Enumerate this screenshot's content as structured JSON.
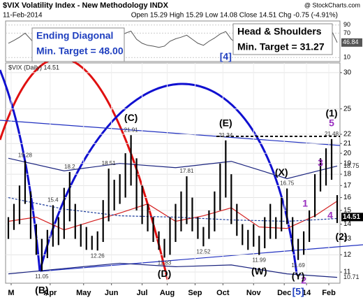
{
  "chart_data": {
    "type": "hl",
    "title": "$VIX Volatility Index - New Methodology INDX",
    "source": "@ StockCharts.com",
    "date": "11-Feb-2014",
    "quote": "Open 15.29 High 15.29 Low 14.08 Close 14.51 Chg -0.75 (-4.91%)",
    "log_scale": true,
    "grid": true,
    "xlim": [
      0,
      60
    ],
    "xticks": [
      {
        "value": 1,
        "label": "M"
      },
      {
        "value": 8,
        "label": "Apr"
      },
      {
        "value": 14,
        "label": "May"
      },
      {
        "value": 19,
        "label": "Jun"
      },
      {
        "value": 24.5,
        "label": "Jul"
      },
      {
        "value": 29,
        "label": "Aug"
      },
      {
        "value": 34,
        "label": "Sep"
      },
      {
        "value": 39,
        "label": "Oct"
      },
      {
        "value": 44.5,
        "label": "Nov"
      },
      {
        "value": 50,
        "label": "Dec"
      },
      {
        "value": 54,
        "label": "14"
      },
      {
        "value": 58,
        "label": "Feb"
      }
    ],
    "ylim": [
      10.4,
      31.5
    ],
    "yticks": [
      11,
      12,
      13,
      14,
      15,
      16,
      17,
      18,
      19,
      20,
      21,
      22,
      25,
      30
    ],
    "series": [
      {
        "name": "$VIX (Daily) 14.51",
        "color": "#000000",
        "highs": [
          14.5,
          15.5,
          17.0,
          19.28,
          16.5,
          14.0,
          13.0,
          13.6,
          15.4,
          14.5,
          16.8,
          18.2,
          15.5,
          14.0,
          13.8,
          13.2,
          13.5,
          15.8,
          18.51,
          17.5,
          18.0,
          20.0,
          21.91,
          19.5,
          17.0,
          15.5,
          14.5,
          13.5,
          13.0,
          14.5,
          15.5,
          16.5,
          17.81,
          16.0,
          14.5,
          13.8,
          15.0,
          16.5,
          19.0,
          21.34,
          18.0,
          15.5,
          14.0,
          13.6,
          14.0,
          13.2,
          14.5,
          15.5,
          14.5,
          16.0,
          16.75,
          14.5,
          13.0,
          13.5,
          15.0,
          18.0,
          19.5,
          20.5,
          21.48,
          16.2
        ],
        "lows": [
          13.0,
          13.6,
          14.0,
          15.5,
          13.0,
          12.0,
          11.05,
          11.8,
          12.5,
          12.6,
          13.0,
          14.2,
          13.0,
          12.5,
          12.3,
          12.3,
          12.26,
          12.8,
          14.2,
          15.0,
          15.5,
          16.0,
          17.0,
          15.0,
          14.0,
          13.5,
          12.8,
          12.3,
          11.83,
          12.0,
          12.8,
          13.5,
          14.0,
          13.5,
          13.0,
          12.52,
          13.0,
          13.5,
          15.0,
          16.0,
          14.0,
          13.2,
          12.6,
          12.3,
          12.5,
          11.99,
          12.4,
          13.0,
          13.0,
          13.5,
          14.0,
          12.2,
          11.69,
          12.0,
          12.8,
          14.5,
          16.5,
          17.0,
          17.5,
          14.08
        ],
        "labeled_highs": [
          3,
          8,
          11,
          18,
          22,
          32,
          39,
          50,
          58
        ],
        "labeled_lows": [
          6,
          16,
          28,
          35,
          45,
          52
        ],
        "last_close": 14.51
      }
    ],
    "overlays": [
      {
        "color": "#d42020",
        "x": [
          0,
          5,
          10,
          15,
          20,
          25,
          30,
          35,
          40,
          45,
          50,
          55,
          59
        ],
        "values": [
          14.2,
          14.5,
          13.6,
          14.2,
          14.8,
          15.5,
          14.2,
          14.6,
          15.2,
          13.8,
          13.7,
          14.6,
          15.72
        ],
        "dashed": false,
        "last_label": false
      },
      {
        "color": "#1a3a9a",
        "x": [
          0,
          10,
          20,
          30,
          40,
          50,
          59
        ],
        "values": [
          16.0,
          15.1,
          14.6,
          14.5,
          14.3,
          14.2,
          14.4
        ],
        "dashed": true,
        "last_label": false
      },
      {
        "color": "#1a237e",
        "x": [
          0,
          10,
          20,
          30,
          40,
          50,
          59
        ],
        "values": [
          19.5,
          18.3,
          19.0,
          18.6,
          19.2,
          17.6,
          18.75
        ],
        "dashed": false,
        "last_label": true
      },
      {
        "color": "#1a237e",
        "x": [
          0,
          10,
          20,
          30,
          40,
          50,
          59
        ],
        "values": [
          10.9,
          11.2,
          11.5,
          11.3,
          11.4,
          10.9,
          10.71
        ],
        "dashed": false,
        "last_label": true
      }
    ],
    "rsi": {
      "color": "#555555",
      "ylim": [
        0,
        100
      ],
      "yticks": [
        10,
        70,
        90
      ],
      "values": [
        45,
        52,
        60,
        70,
        55,
        38,
        30,
        40,
        55,
        50,
        58,
        66,
        50,
        42,
        40,
        38,
        42,
        55,
        65,
        60,
        62,
        70,
        75,
        55,
        45,
        40,
        38,
        35,
        38,
        50,
        56,
        60,
        65,
        55,
        45,
        40,
        50,
        58,
        68,
        74,
        55,
        44,
        40,
        38,
        42,
        36,
        48,
        55,
        50,
        58,
        62,
        42,
        36,
        42,
        55,
        68,
        72,
        74,
        76,
        46.84
      ]
    },
    "notes": [
      {
        "lines": [
          "Ending Diagonal",
          "Min. Target = 48.00"
        ],
        "color": "#1f3fbf"
      },
      {
        "lines": [
          "Head & Shoulders",
          "Min. Target = 31.27"
        ],
        "color": "#000000"
      }
    ],
    "wave_labels": [
      {
        "text": "(B)",
        "color": "#000000"
      },
      {
        "text": "(C)",
        "color": "#000000"
      },
      {
        "text": "(D)",
        "color": "#000000"
      },
      {
        "text": "(E)",
        "color": "#000000"
      },
      {
        "text": "[4]",
        "color": "#1f3fbf"
      },
      {
        "text": "(1)",
        "color": "#000000"
      },
      {
        "text": "5",
        "color": "#9a2fc0"
      },
      {
        "text": "3",
        "color": "#9a2fc0"
      },
      {
        "text": "1",
        "color": "#9a2fc0"
      },
      {
        "text": "4",
        "color": "#9a2fc0"
      },
      {
        "text": "2",
        "color": "#9a2fc0"
      },
      {
        "text": "(2)",
        "color": "#000000"
      },
      {
        "text": "(X)",
        "color": "#000000"
      },
      {
        "text": "(W)",
        "color": "#000000"
      },
      {
        "text": "(Y)",
        "color": "#000000"
      },
      {
        "text": "[5]",
        "color": "#1f3fbf"
      }
    ]
  }
}
